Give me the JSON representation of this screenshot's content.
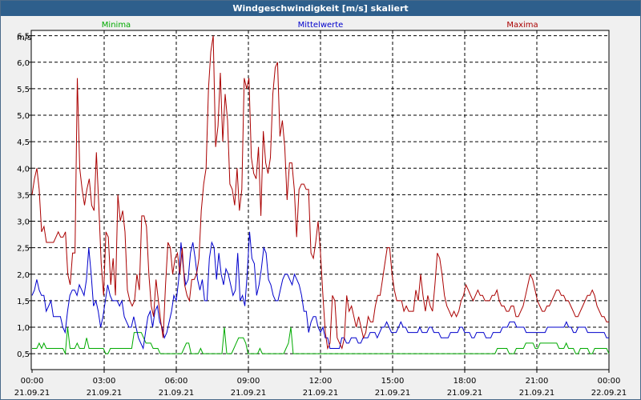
{
  "window": {
    "title": "Windgeschwindigkeit [m/s] skaliert"
  },
  "chart_data": {
    "type": "line",
    "title": "Windgeschwindigkeit [m/s] skaliert",
    "ylabel": "m/s",
    "ylim": [
      0.2,
      6.6
    ],
    "xlim": [
      0,
      24
    ],
    "grid": true,
    "legend": "top",
    "y_ticks": [
      {
        "value": 0.5,
        "label": "0,5"
      },
      {
        "value": 1.0,
        "label": "1,0"
      },
      {
        "value": 1.5,
        "label": "1,5"
      },
      {
        "value": 2.0,
        "label": "2,0"
      },
      {
        "value": 2.5,
        "label": "2,5"
      },
      {
        "value": 3.0,
        "label": "3,0"
      },
      {
        "value": 3.5,
        "label": "3,5"
      },
      {
        "value": 4.0,
        "label": "4,0"
      },
      {
        "value": 4.5,
        "label": "4,5"
      },
      {
        "value": 5.0,
        "label": "5,0"
      },
      {
        "value": 5.5,
        "label": "5,5"
      },
      {
        "value": 6.0,
        "label": "6,0"
      },
      {
        "value": 6.5,
        "label": "6,5"
      }
    ],
    "x_ticks": [
      {
        "value": 0,
        "time": "00:00",
        "date": "21.09.21"
      },
      {
        "value": 3,
        "time": "03:00",
        "date": "21.09.21"
      },
      {
        "value": 6,
        "time": "06:00",
        "date": "21.09.21"
      },
      {
        "value": 9,
        "time": "09:00",
        "date": "21.09.21"
      },
      {
        "value": 12,
        "time": "12:00",
        "date": "21.09.21"
      },
      {
        "value": 15,
        "time": "15:00",
        "date": "21.09.21"
      },
      {
        "value": 18,
        "time": "18:00",
        "date": "21.09.21"
      },
      {
        "value": 21,
        "time": "21:00",
        "date": "21.09.21"
      },
      {
        "value": 24,
        "time": "00:00",
        "date": "22.09.21"
      }
    ],
    "series": [
      {
        "name": "Minima",
        "color": "#00aa00",
        "values": [
          0.6,
          0.6,
          0.6,
          0.7,
          0.6,
          0.7,
          0.6,
          0.6,
          0.6,
          0.6,
          0.6,
          0.6,
          0.6,
          0.6,
          0.5,
          1.0,
          0.6,
          0.6,
          0.6,
          0.7,
          0.6,
          0.6,
          0.6,
          0.8,
          0.6,
          0.6,
          0.6,
          0.6,
          0.6,
          0.6,
          0.6,
          0.5,
          0.5,
          0.6,
          0.6,
          0.6,
          0.6,
          0.6,
          0.6,
          0.6,
          0.6,
          0.6,
          0.6,
          0.9,
          0.9,
          0.9,
          0.9,
          0.8,
          0.7,
          0.7,
          0.7,
          0.6,
          0.6,
          0.6,
          0.5,
          0.5,
          0.5,
          0.5,
          0.5,
          0.5,
          0.5,
          0.5,
          0.5,
          0.5,
          0.6,
          0.7,
          0.7,
          0.5,
          0.5,
          0.5,
          0.5,
          0.6,
          0.5,
          0.5,
          0.5,
          0.5,
          0.5,
          0.5,
          0.5,
          0.5,
          0.5,
          1.0,
          0.5,
          0.5,
          0.5,
          0.6,
          0.7,
          0.8,
          0.8,
          0.8,
          0.7,
          0.5,
          0.5,
          0.5,
          0.5,
          0.5,
          0.6,
          0.5,
          0.5,
          0.5,
          0.5,
          0.5,
          0.5,
          0.5,
          0.5,
          0.5,
          0.5,
          0.6,
          0.7,
          1.0,
          0.5,
          0.5,
          0.5,
          0.5,
          0.5,
          0.5,
          0.5,
          0.5,
          0.5,
          0.5,
          0.5,
          0.5,
          0.5,
          0.5,
          0.5,
          0.5,
          0.5,
          0.5,
          0.5,
          0.5,
          0.5,
          0.5,
          0.5,
          0.5,
          0.5,
          0.5,
          0.5,
          0.5,
          0.5,
          0.5,
          0.5,
          0.5,
          0.5,
          0.5,
          0.5,
          0.5,
          0.5,
          0.5,
          0.5,
          0.5,
          0.5,
          0.5,
          0.5,
          0.5,
          0.5,
          0.5,
          0.5,
          0.5,
          0.5,
          0.5,
          0.5,
          0.5,
          0.5,
          0.5,
          0.5,
          0.5,
          0.5,
          0.5,
          0.5,
          0.5,
          0.5,
          0.5,
          0.5,
          0.5,
          0.5,
          0.5,
          0.5,
          0.5,
          0.5,
          0.5,
          0.5,
          0.5,
          0.5,
          0.5,
          0.5,
          0.5,
          0.5,
          0.5,
          0.5,
          0.5,
          0.5,
          0.5,
          0.5,
          0.5,
          0.5,
          0.5,
          0.6,
          0.6,
          0.6,
          0.6,
          0.6,
          0.5,
          0.5,
          0.5,
          0.6,
          0.6,
          0.6,
          0.6,
          0.7,
          0.7,
          0.7,
          0.7,
          0.6,
          0.6,
          0.7,
          0.7,
          0.7,
          0.7,
          0.7,
          0.7,
          0.7,
          0.7,
          0.6,
          0.6,
          0.6,
          0.7,
          0.6,
          0.6,
          0.6,
          0.5,
          0.5,
          0.6,
          0.6,
          0.6,
          0.6,
          0.5,
          0.5,
          0.6,
          0.6,
          0.6,
          0.6,
          0.6,
          0.6,
          0.5
        ]
      },
      {
        "name": "Mittelwerte",
        "color": "#0000cc",
        "values": [
          1.6,
          1.7,
          1.9,
          1.7,
          1.6,
          1.6,
          1.3,
          1.4,
          1.5,
          1.2,
          1.2,
          1.2,
          1.2,
          1.0,
          0.9,
          1.3,
          1.6,
          1.7,
          1.7,
          1.6,
          1.8,
          1.7,
          1.6,
          1.9,
          2.5,
          2.0,
          1.4,
          1.5,
          1.3,
          1.0,
          1.2,
          1.5,
          1.8,
          1.6,
          1.5,
          1.5,
          1.5,
          1.4,
          1.5,
          1.2,
          1.1,
          1.0,
          1.0,
          1.2,
          1.0,
          0.8,
          0.7,
          0.6,
          0.9,
          1.2,
          1.3,
          1.0,
          1.3,
          1.4,
          1.1,
          1.0,
          0.8,
          0.9,
          1.1,
          1.3,
          1.6,
          1.5,
          1.9,
          2.6,
          2.1,
          1.8,
          1.9,
          2.4,
          2.6,
          2.3,
          1.9,
          1.7,
          1.9,
          1.5,
          1.5,
          2.3,
          2.6,
          2.5,
          1.9,
          2.4,
          2.0,
          1.8,
          2.1,
          2.0,
          1.8,
          1.6,
          1.7,
          2.4,
          1.5,
          1.6,
          1.4,
          2.0,
          2.8,
          2.3,
          2.2,
          1.6,
          1.8,
          2.1,
          2.5,
          2.4,
          1.9,
          1.8,
          1.6,
          1.5,
          1.5,
          1.7,
          1.9,
          2.0,
          2.0,
          1.9,
          1.8,
          2.0,
          1.9,
          1.8,
          1.6,
          1.3,
          1.3,
          0.9,
          1.1,
          1.2,
          1.2,
          1.0,
          0.9,
          1.0,
          0.8,
          0.8,
          0.6,
          0.6,
          0.6,
          0.6,
          0.6,
          0.8,
          0.8,
          0.7,
          0.7,
          0.8,
          0.8,
          0.8,
          0.7,
          0.7,
          0.8,
          0.8,
          0.8,
          0.9,
          0.9,
          0.9,
          0.8,
          0.9,
          1.0,
          1.0,
          1.1,
          1.0,
          0.9,
          0.9,
          0.9,
          1.0,
          1.1,
          1.0,
          1.0,
          0.9,
          0.9,
          0.9,
          0.9,
          0.9,
          1.0,
          0.9,
          0.9,
          0.9,
          1.0,
          1.0,
          0.9,
          0.9,
          0.9,
          0.8,
          0.8,
          0.8,
          0.8,
          0.9,
          0.9,
          0.9,
          0.9,
          1.0,
          1.0,
          0.9,
          0.9,
          0.9,
          0.8,
          0.8,
          0.9,
          0.9,
          0.9,
          0.9,
          0.8,
          0.8,
          0.8,
          0.9,
          0.9,
          0.9,
          0.9,
          1.0,
          1.0,
          1.0,
          1.1,
          1.1,
          1.1,
          1.0,
          1.0,
          1.0,
          1.0,
          0.9,
          0.9,
          0.9,
          0.9,
          0.9,
          0.9,
          0.9,
          0.9,
          0.9,
          1.0,
          1.0,
          1.0,
          1.0,
          1.0,
          1.0,
          1.0,
          1.0,
          1.1,
          1.0,
          1.0,
          0.9,
          0.9,
          1.0,
          1.0,
          1.0,
          1.0,
          0.9,
          0.9,
          0.9,
          0.9,
          0.9,
          0.9,
          0.9,
          0.9,
          0.8,
          0.8
        ]
      },
      {
        "name": "Maxima",
        "color": "#aa0000",
        "values": [
          3.5,
          3.8,
          4.0,
          3.6,
          2.8,
          2.9,
          2.6,
          2.6,
          2.6,
          2.6,
          2.7,
          2.8,
          2.7,
          2.7,
          2.8,
          2.0,
          1.8,
          2.4,
          2.4,
          5.7,
          4.0,
          3.6,
          3.3,
          3.6,
          3.8,
          3.3,
          3.2,
          4.3,
          3.3,
          2.2,
          1.6,
          2.8,
          2.7,
          1.8,
          2.3,
          1.6,
          3.5,
          3.0,
          3.2,
          2.8,
          1.7,
          1.5,
          1.4,
          1.5,
          2.0,
          1.7,
          3.1,
          3.1,
          2.9,
          2.0,
          1.4,
          1.2,
          1.9,
          1.5,
          1.1,
          0.8,
          1.8,
          2.6,
          2.5,
          2.0,
          2.3,
          2.4,
          2.0,
          2.5,
          1.8,
          1.6,
          1.5,
          1.9,
          1.9,
          2.0,
          2.3,
          3.2,
          3.7,
          4.0,
          5.5,
          6.2,
          6.5,
          4.4,
          4.8,
          5.8,
          4.5,
          5.4,
          4.9,
          3.7,
          3.6,
          3.3,
          4.0,
          3.2,
          3.6,
          5.7,
          5.5,
          5.7,
          4.2,
          3.9,
          3.8,
          4.4,
          3.1,
          4.7,
          4.1,
          3.9,
          4.2,
          5.4,
          5.9,
          6.0,
          4.6,
          4.9,
          4.4,
          3.4,
          4.1,
          4.1,
          3.6,
          2.7,
          3.6,
          3.7,
          3.7,
          3.6,
          3.6,
          2.4,
          2.3,
          2.6,
          3.0,
          2.4,
          1.6,
          0.9,
          0.6,
          0.7,
          1.6,
          1.5,
          0.8,
          0.7,
          0.6,
          0.8,
          1.6,
          1.3,
          1.4,
          1.2,
          1.0,
          1.2,
          1.0,
          0.8,
          0.9,
          1.2,
          1.1,
          1.1,
          1.4,
          1.6,
          1.6,
          1.9,
          2.2,
          2.5,
          2.5,
          2.0,
          1.7,
          1.5,
          1.5,
          1.5,
          1.3,
          1.4,
          1.3,
          1.3,
          1.3,
          1.7,
          1.5,
          2.0,
          1.6,
          1.3,
          1.6,
          1.4,
          1.3,
          1.8,
          2.4,
          2.3,
          2.0,
          1.6,
          1.4,
          1.3,
          1.2,
          1.3,
          1.2,
          1.3,
          1.5,
          1.6,
          1.8,
          1.7,
          1.6,
          1.5,
          1.6,
          1.7,
          1.6,
          1.6,
          1.5,
          1.5,
          1.5,
          1.6,
          1.6,
          1.7,
          1.5,
          1.4,
          1.4,
          1.3,
          1.3,
          1.4,
          1.4,
          1.2,
          1.2,
          1.3,
          1.4,
          1.6,
          1.8,
          2.0,
          1.9,
          1.7,
          1.5,
          1.4,
          1.3,
          1.3,
          1.4,
          1.4,
          1.5,
          1.6,
          1.7,
          1.7,
          1.6,
          1.6,
          1.5,
          1.5,
          1.4,
          1.3,
          1.2,
          1.2,
          1.3,
          1.4,
          1.5,
          1.6,
          1.6,
          1.7,
          1.6,
          1.4,
          1.3,
          1.2,
          1.2,
          1.1,
          1.1
        ]
      }
    ]
  }
}
